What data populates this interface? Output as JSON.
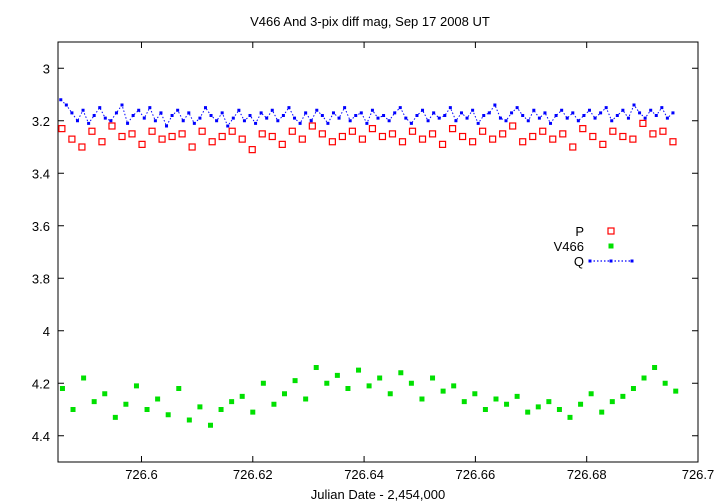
{
  "chart_data": {
    "type": "scatter",
    "title": "V466 And  3-pix diff mag, Sep 17 2008 UT",
    "xlabel": "Julian Date - 2,454,000",
    "ylabel": "",
    "xlim": [
      726.585,
      726.7
    ],
    "ylim": [
      4.5,
      2.9
    ],
    "y_inverted": true,
    "grid": false,
    "legend_position": "right-middle",
    "x_ticks": [
      "726.6",
      "726.62",
      "726.64",
      "726.66",
      "726.68",
      "726.7"
    ],
    "y_ticks": [
      "3",
      "3.2",
      "3.4",
      "3.6",
      "3.8",
      "4",
      "4.2",
      "4.4"
    ],
    "series": [
      {
        "name": "P",
        "color": "#ff0000",
        "marker": "open-square",
        "x": [
          726.5857,
          726.5875,
          726.5893,
          726.5911,
          726.5929,
          726.5947,
          726.5965,
          726.5983,
          726.6001,
          726.6019,
          726.6037,
          726.6055,
          726.6073,
          726.6091,
          726.6109,
          726.6127,
          726.6145,
          726.6163,
          726.6181,
          726.6199,
          726.6217,
          726.6235,
          726.6253,
          726.6271,
          726.6289,
          726.6307,
          726.6325,
          726.6343,
          726.6361,
          726.6379,
          726.6397,
          726.6415,
          726.6433,
          726.6451,
          726.6469,
          726.6487,
          726.6505,
          726.6523,
          726.6541,
          726.6559,
          726.6577,
          726.6595,
          726.6613,
          726.6631,
          726.6649,
          726.6667,
          726.6685,
          726.6703,
          726.6721,
          726.6739,
          726.6757,
          726.6775,
          726.6793,
          726.6811,
          726.6829,
          726.6847,
          726.6865,
          726.6883,
          726.6901,
          726.6919,
          726.6937,
          726.6955
        ],
        "y": [
          3.23,
          3.27,
          3.3,
          3.24,
          3.28,
          3.22,
          3.26,
          3.25,
          3.29,
          3.24,
          3.27,
          3.26,
          3.25,
          3.3,
          3.24,
          3.28,
          3.26,
          3.24,
          3.27,
          3.31,
          3.25,
          3.26,
          3.29,
          3.24,
          3.27,
          3.22,
          3.25,
          3.28,
          3.26,
          3.24,
          3.27,
          3.23,
          3.26,
          3.25,
          3.28,
          3.24,
          3.27,
          3.25,
          3.29,
          3.23,
          3.26,
          3.28,
          3.24,
          3.27,
          3.25,
          3.22,
          3.28,
          3.26,
          3.24,
          3.27,
          3.25,
          3.3,
          3.23,
          3.26,
          3.29,
          3.24,
          3.26,
          3.27,
          3.21,
          3.25,
          3.24,
          3.28
        ]
      },
      {
        "name": "V466",
        "color": "#00e000",
        "marker": "filled-square",
        "x": [
          726.5858,
          726.5877,
          726.5896,
          726.5915,
          726.5934,
          726.5953,
          726.5972,
          726.5991,
          726.601,
          726.6029,
          726.6048,
          726.6067,
          726.6086,
          726.6105,
          726.6124,
          726.6143,
          726.6162,
          726.6181,
          726.62,
          726.6219,
          726.6238,
          726.6257,
          726.6276,
          726.6295,
          726.6314,
          726.6333,
          726.6352,
          726.6371,
          726.639,
          726.6409,
          726.6428,
          726.6447,
          726.6466,
          726.6485,
          726.6504,
          726.6523,
          726.6542,
          726.6561,
          726.658,
          726.6599,
          726.6618,
          726.6637,
          726.6656,
          726.6675,
          726.6694,
          726.6713,
          726.6732,
          726.6751,
          726.677,
          726.6789,
          726.6808,
          726.6827,
          726.6846,
          726.6865,
          726.6884,
          726.6903,
          726.6922,
          726.6941,
          726.696
        ],
        "y": [
          4.22,
          4.3,
          4.18,
          4.27,
          4.24,
          4.33,
          4.28,
          4.21,
          4.3,
          4.26,
          4.32,
          4.22,
          4.34,
          4.29,
          4.36,
          4.3,
          4.27,
          4.25,
          4.31,
          4.2,
          4.28,
          4.24,
          4.19,
          4.26,
          4.14,
          4.2,
          4.17,
          4.22,
          4.15,
          4.21,
          4.18,
          4.24,
          4.16,
          4.2,
          4.26,
          4.18,
          4.23,
          4.21,
          4.27,
          4.24,
          4.3,
          4.26,
          4.28,
          4.25,
          4.31,
          4.29,
          4.27,
          4.3,
          4.33,
          4.28,
          4.24,
          4.31,
          4.27,
          4.25,
          4.22,
          4.18,
          4.14,
          4.2,
          4.23
        ]
      },
      {
        "name": "Q",
        "color": "#0000ff",
        "marker": "dotted-line",
        "x": [
          726.5855,
          726.5865,
          726.5875,
          726.5885,
          726.5895,
          726.5905,
          726.5915,
          726.5925,
          726.5935,
          726.5945,
          726.5955,
          726.5965,
          726.5975,
          726.5985,
          726.5995,
          726.6005,
          726.6015,
          726.6025,
          726.6035,
          726.6045,
          726.6055,
          726.6065,
          726.6075,
          726.6085,
          726.6095,
          726.6105,
          726.6115,
          726.6125,
          726.6135,
          726.6145,
          726.6155,
          726.6165,
          726.6175,
          726.6185,
          726.6195,
          726.6205,
          726.6215,
          726.6225,
          726.6235,
          726.6245,
          726.6255,
          726.6265,
          726.6275,
          726.6285,
          726.6295,
          726.6305,
          726.6315,
          726.6325,
          726.6335,
          726.6345,
          726.6355,
          726.6365,
          726.6375,
          726.6385,
          726.6395,
          726.6405,
          726.6415,
          726.6425,
          726.6435,
          726.6445,
          726.6455,
          726.6465,
          726.6475,
          726.6485,
          726.6495,
          726.6505,
          726.6515,
          726.6525,
          726.6535,
          726.6545,
          726.6555,
          726.6565,
          726.6575,
          726.6585,
          726.6595,
          726.6605,
          726.6615,
          726.6625,
          726.6635,
          726.6645,
          726.6655,
          726.6665,
          726.6675,
          726.6685,
          726.6695,
          726.6705,
          726.6715,
          726.6725,
          726.6735,
          726.6745,
          726.6755,
          726.6765,
          726.6775,
          726.6785,
          726.6795,
          726.6805,
          726.6815,
          726.6825,
          726.6835,
          726.6845,
          726.6855,
          726.6865,
          726.6875,
          726.6885,
          726.6895,
          726.6905,
          726.6915,
          726.6925,
          726.6935,
          726.6945,
          726.6955
        ],
        "y": [
          3.12,
          3.14,
          3.17,
          3.2,
          3.16,
          3.21,
          3.18,
          3.15,
          3.19,
          3.2,
          3.17,
          3.14,
          3.21,
          3.18,
          3.16,
          3.19,
          3.15,
          3.2,
          3.17,
          3.22,
          3.18,
          3.16,
          3.2,
          3.17,
          3.21,
          3.19,
          3.15,
          3.18,
          3.2,
          3.17,
          3.22,
          3.19,
          3.16,
          3.2,
          3.18,
          3.21,
          3.17,
          3.19,
          3.16,
          3.2,
          3.18,
          3.15,
          3.19,
          3.21,
          3.17,
          3.2,
          3.16,
          3.18,
          3.21,
          3.17,
          3.19,
          3.15,
          3.2,
          3.18,
          3.17,
          3.21,
          3.16,
          3.19,
          3.18,
          3.2,
          3.17,
          3.15,
          3.19,
          3.21,
          3.18,
          3.16,
          3.2,
          3.17,
          3.19,
          3.18,
          3.15,
          3.2,
          3.17,
          3.19,
          3.16,
          3.21,
          3.18,
          3.17,
          3.14,
          3.19,
          3.2,
          3.17,
          3.15,
          3.18,
          3.2,
          3.16,
          3.19,
          3.17,
          3.21,
          3.18,
          3.16,
          3.19,
          3.17,
          3.2,
          3.18,
          3.16,
          3.19,
          3.17,
          3.15,
          3.2,
          3.18,
          3.16,
          3.19,
          3.14,
          3.17,
          3.19,
          3.16,
          3.18,
          3.15,
          3.19,
          3.17
        ]
      }
    ]
  }
}
